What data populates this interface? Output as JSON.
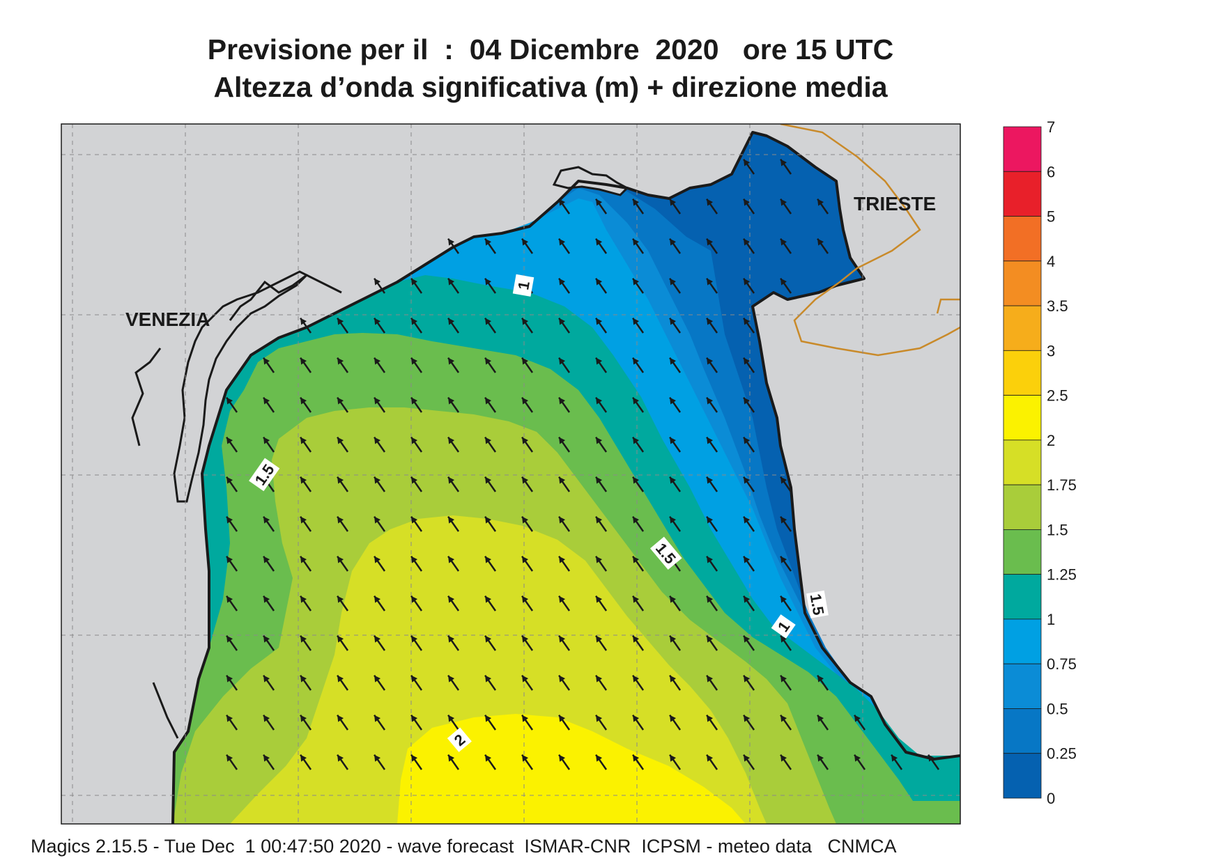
{
  "title": {
    "line1": "Previsione per il  :  04 Dicembre  2020   ore 15 UTC",
    "line2": "Altezza d’onda significativa (m) + direzione media"
  },
  "cities": {
    "venezia": "VENEZIA",
    "trieste": "TRIESTE"
  },
  "contour_labels": [
    "1",
    "1.5",
    "1.5",
    "1",
    "2",
    "1.5"
  ],
  "colorbar": {
    "ticks": [
      "7",
      "6",
      "5",
      "4",
      "3.5",
      "3",
      "2.5",
      "2",
      "1.75",
      "1.5",
      "1.25",
      "1",
      "0.75",
      "0.5",
      "0.25",
      "0"
    ],
    "colors": [
      "#ec1760",
      "#e8202a",
      "#f26f25",
      "#f38d22",
      "#f6ad1b",
      "#fbd00b",
      "#fbf200",
      "#d6df26",
      "#a9cd3a",
      "#6abd4e",
      "#00a99e",
      "#00a0e3",
      "#0b8cd6",
      "#0777c5",
      "#0561b0"
    ]
  },
  "colors": {
    "land": "#d2d3d5",
    "coast": "#1a1a1a",
    "border": "#c98a2a",
    "arrow": "#1a1a1a"
  },
  "footer": "Magics 2.15.5 - Tue Dec  1 00:47:50 2020 - wave forecast  ISMAR-CNR  ICPSM - meteo data   CNMCA"
}
